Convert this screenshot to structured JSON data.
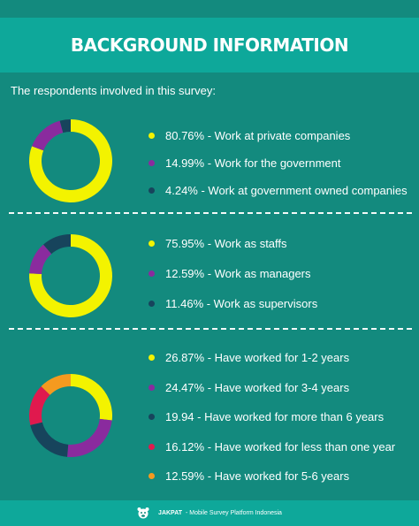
{
  "header": {
    "title": "BACKGROUND INFORMATION"
  },
  "intro": "The respondents involved in this survey:",
  "colors": {
    "background": "#138a7e",
    "banner": "#0ea89a",
    "yellow": "#f3f300",
    "purple": "#8a2b9e",
    "navy": "#17445c",
    "red": "#e0194e",
    "orange": "#f59a1f"
  },
  "chart_data": [
    {
      "type": "pie",
      "donut": true,
      "labels": [
        "80.76% - Work at private companies",
        "14.99% - Work for the government",
        "4.24% - Work at government owned companies"
      ],
      "values": [
        80.76,
        14.99,
        4.24
      ],
      "colors": [
        "#f3f300",
        "#8a2b9e",
        "#17445c"
      ],
      "start_angle_deg": -90
    },
    {
      "type": "pie",
      "donut": true,
      "labels": [
        "75.95% - Work as staffs",
        "12.59% - Work as managers",
        "11.46% - Work as supervisors"
      ],
      "values": [
        75.95,
        12.59,
        11.46
      ],
      "colors": [
        "#f3f300",
        "#8a2b9e",
        "#17445c"
      ],
      "start_angle_deg": -90
    },
    {
      "type": "pie",
      "donut": true,
      "labels": [
        "26.87% - Have worked for 1-2 years",
        "24.47% - Have worked for 3-4 years",
        "19.94 - Have worked for more than 6 years",
        "16.12% - Have worked for less than one  year",
        "12.59% - Have worked for 5-6 years"
      ],
      "values": [
        26.87,
        24.47,
        19.94,
        16.12,
        12.59
      ],
      "colors": [
        "#f3f300",
        "#8a2b9e",
        "#17445c",
        "#e0194e",
        "#f59a1f"
      ],
      "start_angle_deg": -90
    }
  ],
  "footer": {
    "brand": "JAKPAT",
    "tagline": "- Mobile Survey Platform Indonesia"
  }
}
